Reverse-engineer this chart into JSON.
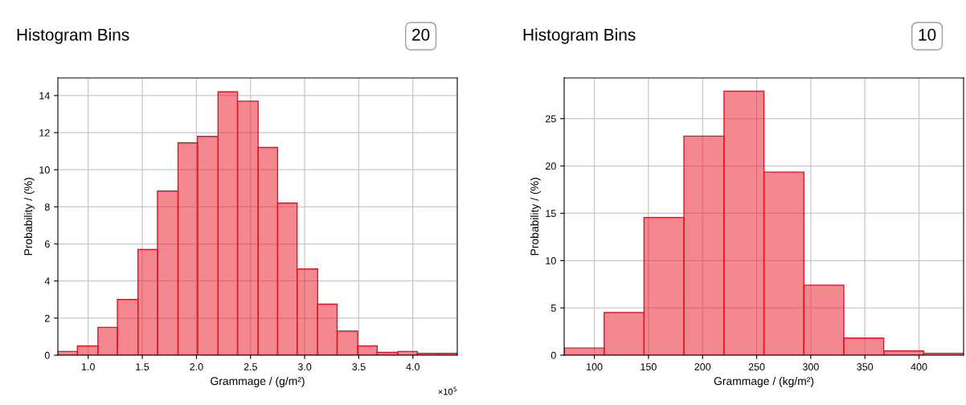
{
  "chart_data": [
    {
      "type": "histogram",
      "title": "Histogram Bins",
      "annotations": [
        "20",
        "×10$^{5}$"
      ],
      "xlabel": "Grammage / (g/m²)",
      "ylabel": "Probability / (%)",
      "color": "#e81123",
      "grid": true,
      "bins": [
        0.72,
        0.9,
        1.09,
        1.27,
        1.46,
        1.64,
        1.83,
        2.01,
        2.2,
        2.38,
        2.57,
        2.75,
        2.93,
        3.12,
        3.3,
        3.49,
        3.67,
        3.86,
        4.04,
        4.23,
        4.41
      ],
      "values": [
        0.2,
        0.5,
        1.5,
        3.0,
        5.7,
        8.85,
        11.45,
        11.8,
        14.2,
        13.7,
        11.2,
        8.2,
        4.65,
        2.75,
        1.3,
        0.5,
        0.15,
        0.2,
        0.1,
        0.1
      ],
      "xlim": [
        0.72,
        4.41
      ],
      "xticks": [
        {
          "value": 1.0,
          "label": "1.0"
        },
        {
          "value": 1.5,
          "label": "1.5"
        },
        {
          "value": 2.0,
          "label": "2.0"
        },
        {
          "value": 2.5,
          "label": "2.5"
        },
        {
          "value": 3.0,
          "label": "3.0"
        },
        {
          "value": 3.5,
          "label": "3.5"
        },
        {
          "value": 4.0,
          "label": "4.0"
        }
      ],
      "ylim": [
        0,
        14.95
      ],
      "yticks": [
        0,
        2,
        4,
        6,
        8,
        10,
        12,
        14
      ]
    },
    {
      "type": "histogram",
      "title": "Histogram Bins",
      "annotations": [
        "10"
      ],
      "xlabel": "Grammage / (kg/m²)",
      "ylabel": "Probability / (%)",
      "color": "#e81123",
      "grid": true,
      "bins": [
        72.1,
        109.0,
        145.9,
        182.8,
        219.8,
        256.7,
        293.6,
        330.5,
        367.4,
        404.3,
        441.2
      ],
      "values": [
        0.75,
        4.5,
        14.55,
        23.15,
        27.9,
        19.35,
        7.4,
        1.8,
        0.45,
        0.2
      ],
      "xlim": [
        72.1,
        441.2
      ],
      "xticks": [
        100,
        150,
        200,
        250,
        300,
        350,
        400
      ],
      "ylim": [
        0,
        29.3
      ],
      "yticks": [
        0,
        5,
        10,
        15,
        20,
        25
      ]
    }
  ]
}
